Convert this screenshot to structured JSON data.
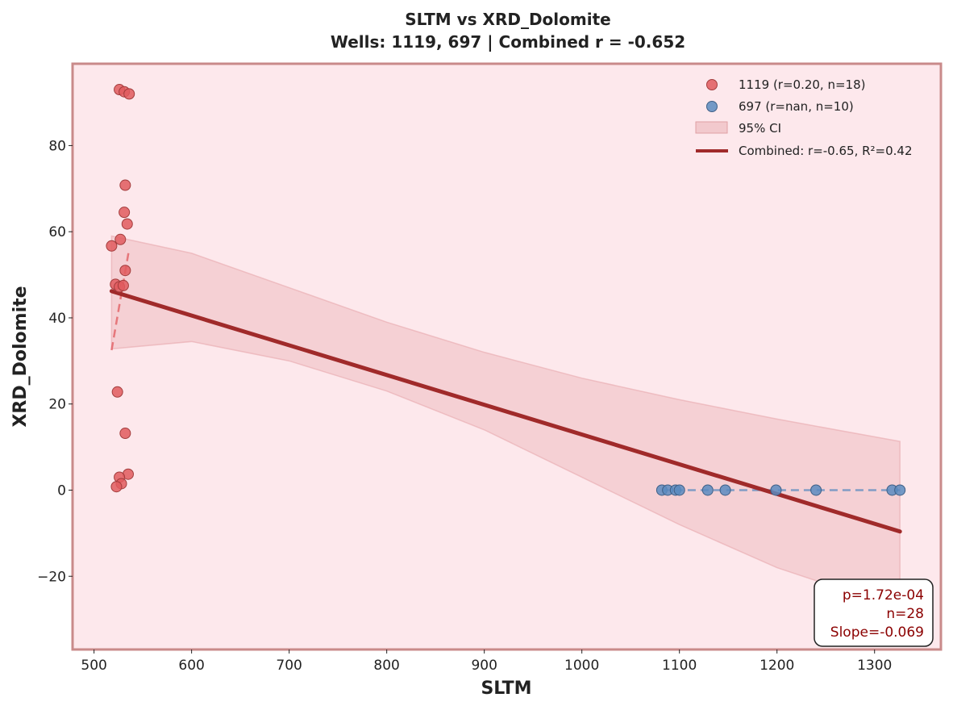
{
  "chart_data": {
    "type": "scatter",
    "title": "SLTM vs XRD_Dolomite",
    "subtitle": "Wells: 1119, 697 | Combined r = -0.652",
    "xlabel": "SLTM",
    "ylabel": "XRD_Dolomite",
    "xlim": [
      478,
      1368
    ],
    "ylim": [
      -37,
      99
    ],
    "xticks": [
      500,
      600,
      700,
      800,
      900,
      1000,
      1100,
      1200,
      1300
    ],
    "yticks": [
      -20,
      0,
      20,
      40,
      60,
      80
    ],
    "ytick_labels": [
      "−20",
      "0",
      "20",
      "40",
      "60",
      "80"
    ],
    "grid": false,
    "legend_position": "top-right",
    "plot_background": "#fde8ec",
    "frame_color": "#c98a8a",
    "series": [
      {
        "name": "1119 (r=0.20, n=18)",
        "color": "#e05a5e",
        "points": [
          [
            526,
            93
          ],
          [
            531,
            92.5
          ],
          [
            536,
            92
          ],
          [
            532,
            70.8
          ],
          [
            531,
            64.5
          ],
          [
            534,
            61.8
          ],
          [
            527,
            58.2
          ],
          [
            518,
            56.7
          ],
          [
            532,
            51
          ],
          [
            522,
            47.8
          ],
          [
            526,
            47.2
          ],
          [
            530,
            47.5
          ],
          [
            524,
            22.8
          ],
          [
            532,
            13.2
          ],
          [
            535,
            3.7
          ],
          [
            526,
            3
          ],
          [
            528,
            1.5
          ],
          [
            523,
            0.8
          ]
        ],
        "trend": {
          "from": [
            518,
            32.5
          ],
          "to": [
            536,
            56
          ],
          "style": "dashed"
        }
      },
      {
        "name": "697 (r=nan, n=10)",
        "color": "#5b8bc0",
        "points": [
          [
            1082,
            0
          ],
          [
            1088,
            0
          ],
          [
            1096,
            0
          ],
          [
            1100,
            0
          ],
          [
            1129,
            0
          ],
          [
            1147,
            0
          ],
          [
            1199,
            0
          ],
          [
            1240,
            0
          ],
          [
            1318,
            0
          ],
          [
            1326,
            0
          ]
        ],
        "trend": {
          "from": [
            1082,
            0
          ],
          "to": [
            1326,
            0
          ],
          "style": "dashed"
        }
      }
    ],
    "confidence_band": {
      "name": "95% CI",
      "color": "#e8a9ae",
      "x": [
        518,
        600,
        700,
        800,
        900,
        1000,
        1100,
        1200,
        1326
      ],
      "upper": [
        59,
        55,
        47,
        39,
        32,
        26,
        21,
        16.5,
        11.3
      ],
      "lower": [
        32.8,
        34.5,
        30,
        23,
        14,
        3,
        -8,
        -18,
        -27.5
      ]
    },
    "fit": {
      "name": "Combined: r=-0.65, R²=0.42",
      "color": "#a02a2a",
      "from": [
        518,
        46.2
      ],
      "to": [
        1326,
        -9.6
      ]
    },
    "stats_box": {
      "p": "p=1.72e-04",
      "n": "n=28",
      "slope": "Slope=-0.069"
    }
  }
}
